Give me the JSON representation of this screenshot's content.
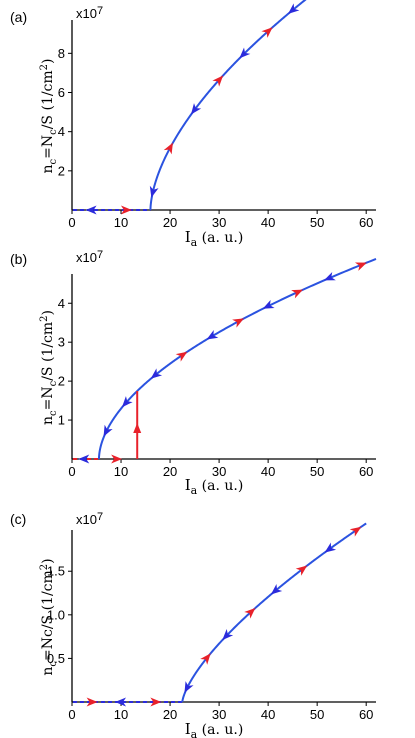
{
  "chart_data": [
    {
      "type": "line",
      "panel_label": "(a)",
      "scale_label": "x10",
      "scale_exp": "7",
      "xlabel_main": "I",
      "xlabel_sub": "a",
      "xlabel_rest": " (a. u.)",
      "ylabel_main": "n",
      "ylabel_sub": "c",
      "ylabel_rest": "=N",
      "ylabel_sub2": "c",
      "ylabel_rest2": "/S (1/cm",
      "ylabel_sup": "2",
      "ylabel_end": ")",
      "xlim": [
        0,
        62
      ],
      "ylim": [
        0,
        9.6
      ],
      "xticks": [
        0,
        10,
        20,
        30,
        40,
        50,
        60
      ],
      "yticks": [
        2,
        4,
        6,
        8
      ],
      "threshold": 16,
      "curve_end": 62,
      "scale_k": 1.4,
      "scale_a": 0.59,
      "zero_line_color": "#2b2bdc",
      "curve_color": "#2b53e0",
      "arrows": [
        {
          "x": 4,
          "dir": "left",
          "color": "#2b2bdc"
        },
        {
          "x": 11,
          "dir": "right",
          "color": "#e8212a"
        },
        {
          "x": 16.5,
          "dir": "down",
          "color": "#2b2bdc"
        },
        {
          "x": 20,
          "dir": "up",
          "color": "#e8212a"
        },
        {
          "x": 25,
          "dir": "down",
          "color": "#2b2bdc"
        },
        {
          "x": 30,
          "dir": "up",
          "color": "#e8212a"
        },
        {
          "x": 35,
          "dir": "down",
          "color": "#2b2bdc"
        },
        {
          "x": 40,
          "dir": "up",
          "color": "#e8212a"
        },
        {
          "x": 45,
          "dir": "down",
          "color": "#2b2bdc"
        },
        {
          "x": 51,
          "dir": "up",
          "color": "#e8212a"
        },
        {
          "x": 57,
          "dir": "down",
          "color": "#2b2bdc"
        }
      ]
    },
    {
      "type": "line",
      "panel_label": "(b)",
      "scale_label": "x10",
      "scale_exp": "7",
      "xlabel_main": "I",
      "xlabel_sub": "a",
      "xlabel_rest": " (a. u.)",
      "ylabel_main": "n",
      "ylabel_sub": "c",
      "ylabel_rest": "=N",
      "ylabel_sub2": "c",
      "ylabel_rest2": "/S (1/cm",
      "ylabel_sup": "2",
      "ylabel_end": ")",
      "xlim": [
        0,
        62
      ],
      "ylim": [
        0,
        4.7
      ],
      "xticks": [
        0,
        10,
        20,
        30,
        40,
        50,
        60
      ],
      "yticks": [
        1,
        2,
        3,
        4
      ],
      "threshold": 5.5,
      "curve_end": 62,
      "scale_k": 0.57,
      "scale_a": 0.545,
      "zero_line_color": "#e8212a",
      "curve_color": "#2b53e0",
      "jump_x": 13.3,
      "jump_color": "#e8212a",
      "arrows": [
        {
          "x": 2.5,
          "dir": "left",
          "color": "#2b2bdc"
        },
        {
          "x": 9,
          "dir": "right",
          "color": "#e8212a"
        },
        {
          "x": 7,
          "dir": "down",
          "color": "#2b2bdc"
        },
        {
          "x": 11,
          "dir": "down",
          "color": "#2b2bdc"
        },
        {
          "x": 17,
          "dir": "down",
          "color": "#2b2bdc"
        },
        {
          "x": 22.5,
          "dir": "up",
          "color": "#e8212a"
        },
        {
          "x": 28.5,
          "dir": "down",
          "color": "#2b2bdc"
        },
        {
          "x": 34,
          "dir": "up",
          "color": "#e8212a"
        },
        {
          "x": 40,
          "dir": "down",
          "color": "#2b2bdc"
        },
        {
          "x": 46,
          "dir": "up",
          "color": "#e8212a"
        },
        {
          "x": 52.5,
          "dir": "down",
          "color": "#2b2bdc"
        },
        {
          "x": 59,
          "dir": "up",
          "color": "#e8212a"
        }
      ]
    },
    {
      "type": "line",
      "panel_label": "(c)",
      "scale_label": "x10",
      "scale_exp": "7",
      "xlabel_main": "I",
      "xlabel_sub": "a",
      "xlabel_rest": " (a. u.)",
      "ylabel_main": "n",
      "ylabel_sub": "c",
      "ylabel_rest": "=Nc/S (1/cm",
      "ylabel_sup": "2",
      "ylabel_end": ")",
      "xlim": [
        0,
        62
      ],
      "ylim": [
        0,
        1.95
      ],
      "xticks": [
        0,
        10,
        20,
        30,
        40,
        50,
        60
      ],
      "yticks": [
        0.5,
        1.0,
        1.5
      ],
      "yticklabels": [
        "0.5",
        "1.0",
        "1.5"
      ],
      "threshold": 22.5,
      "curve_end": 60,
      "scale_k": 0.165,
      "scale_a": 0.695,
      "zero_line_color": "#2b2bdc",
      "curve_color": "#2b53e0",
      "arrows": [
        {
          "x": 4,
          "dir": "right",
          "color": "#e8212a"
        },
        {
          "x": 10,
          "dir": "left",
          "color": "#2b2bdc"
        },
        {
          "x": 17,
          "dir": "right",
          "color": "#e8212a"
        },
        {
          "x": 23.5,
          "dir": "down",
          "color": "#2b2bdc"
        },
        {
          "x": 27.5,
          "dir": "up",
          "color": "#e8212a"
        },
        {
          "x": 31.5,
          "dir": "down",
          "color": "#2b2bdc"
        },
        {
          "x": 36.5,
          "dir": "up",
          "color": "#e8212a"
        },
        {
          "x": 41.5,
          "dir": "down",
          "color": "#2b2bdc"
        },
        {
          "x": 47,
          "dir": "up",
          "color": "#e8212a"
        },
        {
          "x": 52.5,
          "dir": "down",
          "color": "#2b2bdc"
        },
        {
          "x": 58,
          "dir": "up",
          "color": "#e8212a"
        }
      ]
    }
  ]
}
